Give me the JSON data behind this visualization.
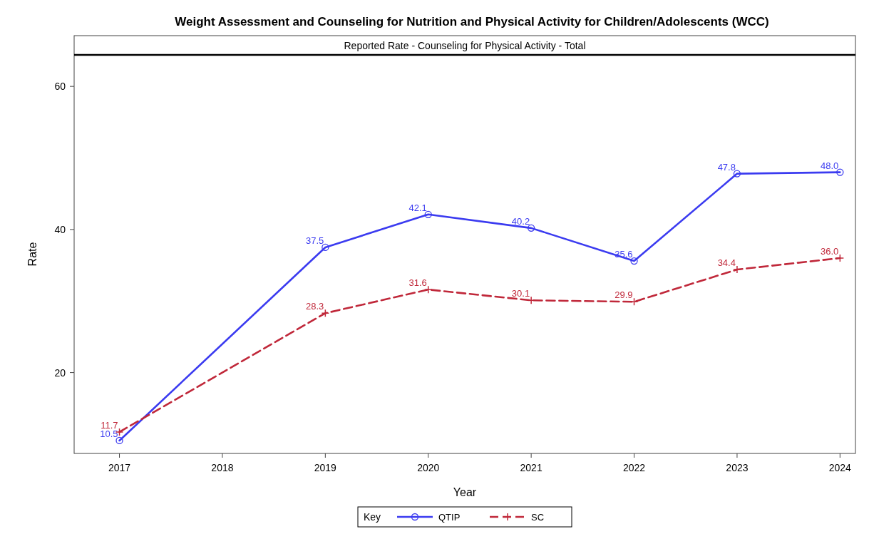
{
  "chart_data": {
    "type": "line",
    "title": "Weight Assessment and Counseling for Nutrition and Physical Activity for Children/Adolescents (WCC)",
    "subtitle": "Reported Rate - Counseling for Physical Activity - Total",
    "xlabel": "Year",
    "ylabel": "Rate",
    "legend_title": "Key",
    "legend": "bottom",
    "grid": false,
    "xlim": [
      2016.56,
      2024.15
    ],
    "xticks": [
      2017,
      2018,
      2019,
      2020,
      2021,
      2022,
      2023,
      2024
    ],
    "ylim": [
      8.7,
      64.4
    ],
    "yticks": [
      20,
      40,
      60
    ],
    "series": [
      {
        "name": "QTIP",
        "color": "#3b3bf0",
        "marker": "circle",
        "line_style": "solid",
        "x": [
          2017,
          2019,
          2020,
          2021,
          2022,
          2023,
          2024
        ],
        "values": [
          10.5,
          37.5,
          42.1,
          40.2,
          35.6,
          47.8,
          48.0
        ],
        "value_labels": [
          "10.5",
          "37.5",
          "42.1",
          "40.2",
          "35.6",
          "47.8",
          "48.0"
        ]
      },
      {
        "name": "SC",
        "color": "#c0283a",
        "marker": "cross",
        "line_style": "dashed",
        "x": [
          2017,
          2019,
          2020,
          2021,
          2022,
          2023,
          2024
        ],
        "values": [
          11.7,
          28.3,
          31.6,
          30.1,
          29.9,
          34.4,
          36.0
        ],
        "value_labels": [
          "11.7",
          "28.3",
          "31.6",
          "30.1",
          "29.9",
          "34.4",
          "36.0"
        ]
      }
    ]
  }
}
